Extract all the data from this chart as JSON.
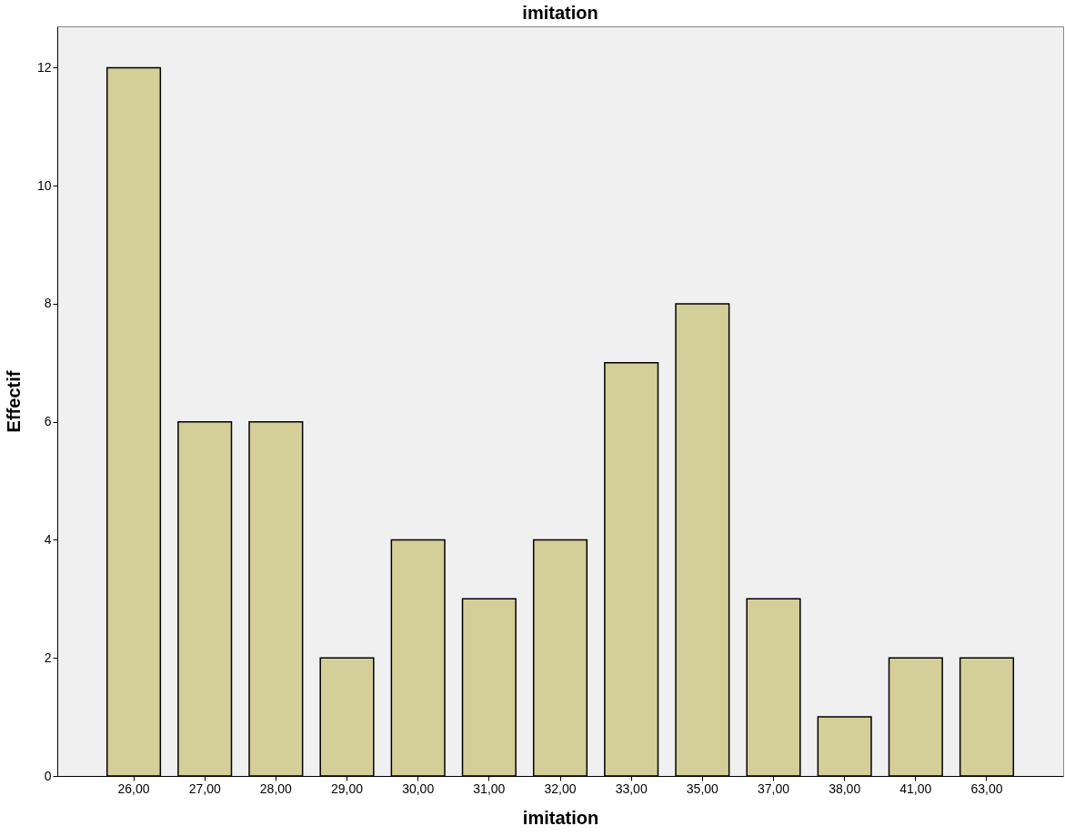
{
  "chart_data": {
    "type": "bar",
    "title": "imitation",
    "xlabel": "imitation",
    "ylabel": "Effectif",
    "categories": [
      "26,00",
      "27,00",
      "28,00",
      "29,00",
      "30,00",
      "31,00",
      "32,00",
      "33,00",
      "35,00",
      "37,00",
      "38,00",
      "41,00",
      "63,00"
    ],
    "values": [
      12,
      6,
      6,
      2,
      4,
      3,
      4,
      7,
      8,
      3,
      1,
      2,
      2
    ],
    "color": "#d4cf98",
    "ylim": [
      0,
      12.7
    ],
    "yticks": [
      0,
      2,
      4,
      6,
      8,
      10,
      12
    ],
    "grid": false
  }
}
